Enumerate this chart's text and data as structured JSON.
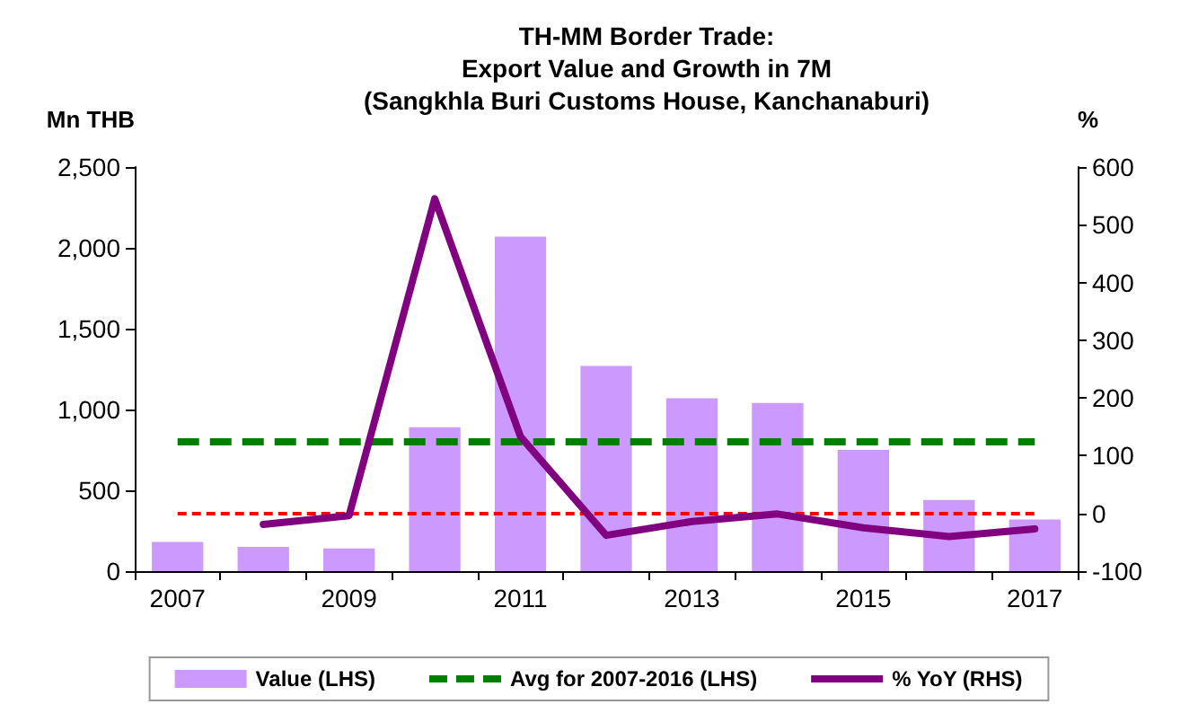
{
  "chart_data": {
    "type": "bar",
    "title": "TH-MM Border Trade:\nExport Value and Growth in 7M\n(Sangkhla Buri Customs House, Kanchanaburi)",
    "ylabel": "Mn THB",
    "y2label": "%",
    "categories": [
      "2007",
      null,
      "2009",
      null,
      "2011",
      null,
      "2013",
      null,
      "2015",
      null,
      "2017"
    ],
    "series": [
      {
        "name": "Value (LHS)",
        "color": "#cc99ff",
        "values": [
          180,
          150,
          140,
          890,
          2070,
          1270,
          1070,
          1040,
          750,
          440,
          320
        ]
      },
      {
        "name": "% YoY (RHS)",
        "type": "line",
        "axis": "y2",
        "color": "#800080",
        "values": [
          null,
          -19,
          -4,
          545,
          133,
          -38,
          -14,
          -1,
          -25,
          -40,
          -27
        ]
      }
    ],
    "ylim": [
      0,
      2500
    ],
    "yticks": [
      0,
      {
        "value": 500,
        "label": "500"
      },
      {
        "value": 1000,
        "label": "1,000"
      },
      {
        "value": 1500,
        "label": "1,500"
      },
      {
        "value": 2000,
        "label": "2,000"
      },
      {
        "value": 2500,
        "label": "2,500"
      }
    ],
    "y2lim": [
      -100,
      600
    ],
    "y2ticks": [
      -100,
      0,
      100,
      200,
      300,
      400,
      500,
      600
    ],
    "ref_lines": [
      {
        "axis": "y",
        "value": 800,
        "label": "Avg for 2007-2016 (LHS)",
        "color": "#008000",
        "line_style": "dashed"
      },
      {
        "axis": "y2",
        "value": 0,
        "color": "#ff0000",
        "line_style": "dashed"
      }
    ],
    "grid": false,
    "legend": "bottom",
    "marker": "none",
    "line_style": "solid"
  }
}
